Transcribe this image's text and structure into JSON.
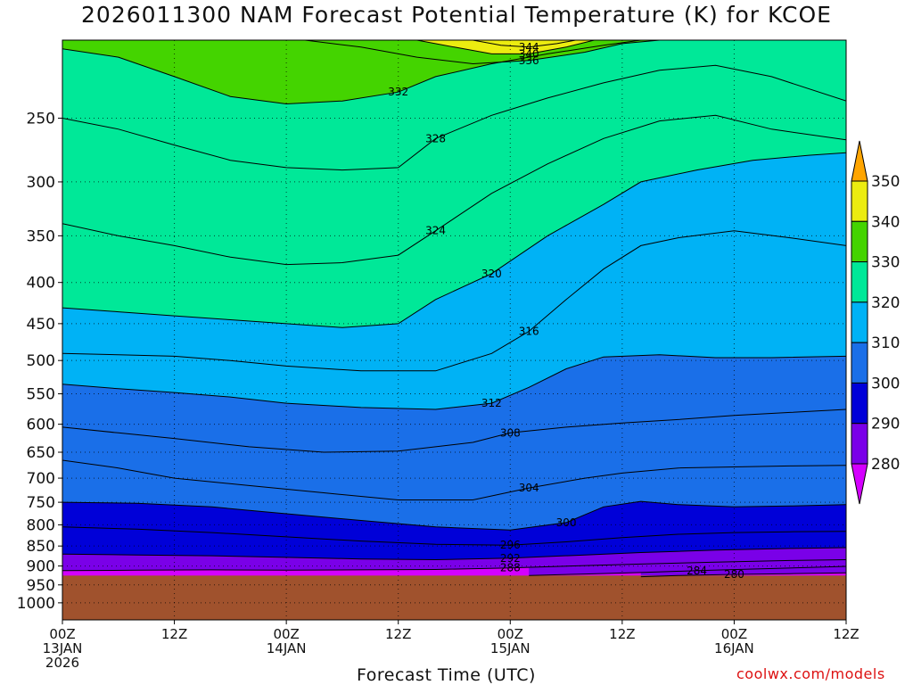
{
  "chart_data": {
    "type": "heatmap",
    "title": "2026011300 NAM Forecast Potential Temperature (K) for KCOE",
    "xlabel": "Forecast Time (UTC)",
    "credit": "coolwx.com/models",
    "x_ticks": [
      {
        "hour": 0,
        "l1": "00Z",
        "l2": "13JAN",
        "l3": "2026"
      },
      {
        "hour": 12,
        "l1": "12Z",
        "l2": "",
        "l3": ""
      },
      {
        "hour": 24,
        "l1": "00Z",
        "l2": "14JAN",
        "l3": ""
      },
      {
        "hour": 36,
        "l1": "12Z",
        "l2": "",
        "l3": ""
      },
      {
        "hour": 48,
        "l1": "00Z",
        "l2": "15JAN",
        "l3": ""
      },
      {
        "hour": 60,
        "l1": "12Z",
        "l2": "",
        "l3": ""
      },
      {
        "hour": 72,
        "l1": "00Z",
        "l2": "16JAN",
        "l3": ""
      },
      {
        "hour": 84,
        "l1": "12Z",
        "l2": "",
        "l3": ""
      }
    ],
    "y_ticks": [
      "250",
      "300",
      "350",
      "400",
      "450",
      "500",
      "550",
      "600",
      "650",
      "700",
      "750",
      "800",
      "850",
      "900",
      "950",
      "1000"
    ],
    "y_values": [
      250,
      300,
      350,
      400,
      450,
      500,
      550,
      600,
      650,
      700,
      750,
      800,
      850,
      900,
      950,
      1000
    ],
    "x_range_hours": [
      0,
      84
    ],
    "y_range_hPa": [
      200,
      1050
    ],
    "y_scale": "log-pressure",
    "ground_level_hPa": 925,
    "grid": true,
    "colorbar": {
      "placement": "right",
      "labels": [
        "280",
        "290",
        "300",
        "310",
        "320",
        "330",
        "340",
        "350"
      ],
      "colors": [
        "#d400ff",
        "#7a00e8",
        "#0000d8",
        "#1a6fe8",
        "#00b2f5",
        "#00e898",
        "#44d400",
        "#ecec10",
        "#ffa500"
      ]
    },
    "ground_color": "#a0522d",
    "contours": [
      {
        "theta": 280,
        "label": "280",
        "pts": [
          [
            62,
            928
          ],
          [
            66,
            925
          ],
          [
            72,
            922
          ],
          [
            78,
            920
          ],
          [
            84,
            918
          ]
        ]
      },
      {
        "theta": 284,
        "label": "284",
        "pts": [
          [
            50,
            925
          ],
          [
            56,
            921
          ],
          [
            62,
            917
          ],
          [
            68,
            912
          ],
          [
            74,
            908
          ],
          [
            80,
            904
          ],
          [
            84,
            901
          ]
        ]
      },
      {
        "theta": 288,
        "label": "288",
        "pts": [
          [
            0,
            912
          ],
          [
            8,
            911
          ],
          [
            16,
            910
          ],
          [
            24,
            911
          ],
          [
            32,
            910
          ],
          [
            40,
            909
          ],
          [
            48,
            905
          ],
          [
            56,
            899
          ],
          [
            62,
            895
          ],
          [
            70,
            890
          ],
          [
            78,
            886
          ],
          [
            84,
            884
          ]
        ]
      },
      {
        "theta": 292,
        "label": "292",
        "pts": [
          [
            0,
            870
          ],
          [
            8,
            872
          ],
          [
            16,
            874
          ],
          [
            24,
            878
          ],
          [
            32,
            882
          ],
          [
            40,
            884
          ],
          [
            48,
            880
          ],
          [
            56,
            872
          ],
          [
            62,
            866
          ],
          [
            70,
            860
          ],
          [
            78,
            856
          ],
          [
            84,
            854
          ]
        ]
      },
      {
        "theta": 296,
        "label": "296",
        "pts": [
          [
            0,
            805
          ],
          [
            8,
            810
          ],
          [
            16,
            818
          ],
          [
            24,
            828
          ],
          [
            32,
            838
          ],
          [
            40,
            846
          ],
          [
            48,
            848
          ],
          [
            54,
            840
          ],
          [
            60,
            830
          ],
          [
            66,
            822
          ],
          [
            72,
            818
          ],
          [
            78,
            816
          ],
          [
            84,
            815
          ]
        ]
      },
      {
        "theta": 300,
        "label": "300",
        "pts": [
          [
            0,
            750
          ],
          [
            8,
            752
          ],
          [
            16,
            760
          ],
          [
            24,
            775
          ],
          [
            32,
            790
          ],
          [
            40,
            805
          ],
          [
            48,
            812
          ],
          [
            54,
            795
          ],
          [
            58,
            760
          ],
          [
            62,
            748
          ],
          [
            66,
            755
          ],
          [
            72,
            760
          ],
          [
            78,
            758
          ],
          [
            84,
            755
          ]
        ]
      },
      {
        "theta": 304,
        "label": "304",
        "pts": [
          [
            0,
            665
          ],
          [
            6,
            680
          ],
          [
            12,
            700
          ],
          [
            20,
            715
          ],
          [
            28,
            730
          ],
          [
            36,
            745
          ],
          [
            44,
            745
          ],
          [
            50,
            720
          ],
          [
            56,
            700
          ],
          [
            60,
            690
          ],
          [
            66,
            680
          ],
          [
            72,
            678
          ],
          [
            78,
            676
          ],
          [
            84,
            675
          ]
        ]
      },
      {
        "theta": 308,
        "label": "308",
        "pts": [
          [
            0,
            605
          ],
          [
            6,
            615
          ],
          [
            12,
            625
          ],
          [
            20,
            640
          ],
          [
            28,
            650
          ],
          [
            36,
            648
          ],
          [
            44,
            632
          ],
          [
            48,
            615
          ],
          [
            54,
            605
          ],
          [
            60,
            598
          ],
          [
            66,
            592
          ],
          [
            72,
            585
          ],
          [
            78,
            580
          ],
          [
            84,
            575
          ]
        ]
      },
      {
        "theta": 312,
        "label": "312",
        "pts": [
          [
            0,
            535
          ],
          [
            6,
            542
          ],
          [
            12,
            548
          ],
          [
            18,
            555
          ],
          [
            24,
            565
          ],
          [
            32,
            572
          ],
          [
            40,
            575
          ],
          [
            46,
            565
          ],
          [
            50,
            540
          ],
          [
            54,
            512
          ],
          [
            58,
            495
          ],
          [
            64,
            492
          ],
          [
            70,
            496
          ],
          [
            76,
            496
          ],
          [
            84,
            494
          ]
        ]
      },
      {
        "theta": 316,
        "label": "316",
        "pts": [
          [
            0,
            490
          ],
          [
            6,
            492
          ],
          [
            12,
            494
          ],
          [
            18,
            500
          ],
          [
            24,
            508
          ],
          [
            32,
            515
          ],
          [
            40,
            515
          ],
          [
            46,
            490
          ],
          [
            50,
            460
          ],
          [
            54,
            420
          ],
          [
            58,
            385
          ],
          [
            62,
            360
          ],
          [
            66,
            352
          ],
          [
            72,
            345
          ],
          [
            78,
            352
          ],
          [
            84,
            360
          ]
        ]
      },
      {
        "theta": 320,
        "label": "320",
        "pts": [
          [
            0,
            430
          ],
          [
            6,
            435
          ],
          [
            12,
            440
          ],
          [
            18,
            445
          ],
          [
            24,
            450
          ],
          [
            30,
            455
          ],
          [
            36,
            450
          ],
          [
            40,
            420
          ],
          [
            46,
            390
          ],
          [
            52,
            350
          ],
          [
            58,
            320
          ],
          [
            62,
            300
          ],
          [
            68,
            290
          ],
          [
            74,
            282
          ],
          [
            80,
            278
          ],
          [
            84,
            276
          ]
        ]
      },
      {
        "theta": 324,
        "label": "324",
        "pts": [
          [
            0,
            338
          ],
          [
            6,
            350
          ],
          [
            12,
            360
          ],
          [
            18,
            372
          ],
          [
            24,
            380
          ],
          [
            30,
            378
          ],
          [
            36,
            370
          ],
          [
            40,
            345
          ],
          [
            46,
            310
          ],
          [
            52,
            285
          ],
          [
            58,
            265
          ],
          [
            64,
            252
          ],
          [
            70,
            248
          ],
          [
            76,
            258
          ],
          [
            84,
            266
          ]
        ]
      },
      {
        "theta": 328,
        "label": "328",
        "pts": [
          [
            0,
            250
          ],
          [
            6,
            258
          ],
          [
            12,
            270
          ],
          [
            18,
            282
          ],
          [
            24,
            288
          ],
          [
            30,
            290
          ],
          [
            36,
            288
          ],
          [
            40,
            265
          ],
          [
            46,
            248
          ],
          [
            52,
            236
          ],
          [
            58,
            226
          ],
          [
            64,
            218
          ],
          [
            70,
            215
          ],
          [
            76,
            222
          ],
          [
            84,
            238
          ]
        ]
      },
      {
        "theta": 332,
        "label": "332",
        "pts": [
          [
            0,
            205
          ],
          [
            6,
            210
          ],
          [
            12,
            222
          ],
          [
            18,
            235
          ],
          [
            24,
            240
          ],
          [
            30,
            238
          ],
          [
            36,
            232
          ],
          [
            40,
            222
          ],
          [
            46,
            214
          ],
          [
            52,
            208
          ],
          [
            58,
            203
          ],
          [
            62,
            200
          ]
        ]
      },
      {
        "theta": 336,
        "label": "336",
        "pts": [
          [
            26,
            200
          ],
          [
            32,
            204
          ],
          [
            38,
            210
          ],
          [
            44,
            214
          ],
          [
            50,
            212
          ],
          [
            56,
            207
          ],
          [
            60,
            202
          ],
          [
            64,
            200
          ]
        ]
      },
      {
        "theta": 340,
        "label": "340",
        "pts": [
          [
            38,
            200
          ],
          [
            42,
            204
          ],
          [
            46,
            208
          ],
          [
            50,
            208
          ],
          [
            54,
            204
          ],
          [
            57,
            200
          ]
        ]
      },
      {
        "theta": 344,
        "label": "344",
        "pts": [
          [
            44,
            200
          ],
          [
            47,
            203
          ],
          [
            50,
            204
          ],
          [
            53,
            202
          ],
          [
            55,
            200
          ]
        ]
      }
    ]
  }
}
